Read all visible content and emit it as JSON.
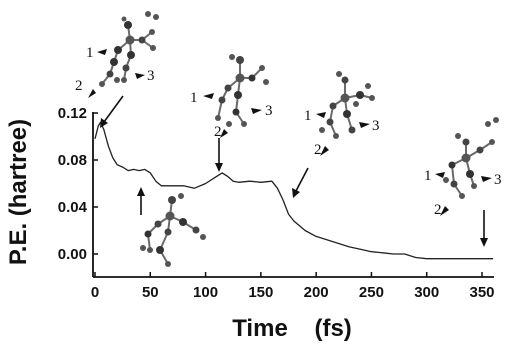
{
  "chart_data": {
    "type": "line",
    "title": "",
    "xlabel": "Time    (fs)",
    "ylabel": "P.E. (hartree)",
    "xlim": [
      0,
      360
    ],
    "ylim": [
      -0.01,
      0.12
    ],
    "xticks": [
      "0",
      "50",
      "100",
      "150",
      "200",
      "250",
      "300",
      "350"
    ],
    "xtick_values": [
      0,
      50,
      100,
      150,
      200,
      250,
      300,
      350
    ],
    "yticks": [
      "0.00",
      "0.04",
      "0.08",
      "0.12"
    ],
    "ytick_values": [
      0.0,
      0.04,
      0.08,
      0.12
    ],
    "grid": false,
    "series": [
      {
        "x": [
          0,
          3,
          5,
          8,
          12,
          16,
          20,
          25,
          30,
          35,
          40,
          45,
          50,
          55,
          60,
          70,
          80,
          90,
          100,
          110,
          115,
          120,
          125,
          130,
          140,
          150,
          160,
          165,
          170,
          175,
          180,
          190,
          200,
          210,
          220,
          230,
          240,
          250,
          260,
          270,
          280,
          290,
          300,
          320,
          340,
          360
        ],
        "y": [
          0.098,
          0.109,
          0.112,
          0.106,
          0.092,
          0.082,
          0.076,
          0.074,
          0.071,
          0.072,
          0.071,
          0.072,
          0.069,
          0.062,
          0.058,
          0.058,
          0.058,
          0.056,
          0.06,
          0.066,
          0.069,
          0.066,
          0.062,
          0.061,
          0.062,
          0.061,
          0.062,
          0.056,
          0.046,
          0.034,
          0.028,
          0.02,
          0.015,
          0.012,
          0.009,
          0.006,
          0.004,
          0.002,
          0.001,
          0.0,
          0.0,
          -0.003,
          -0.004,
          -0.004,
          -0.004,
          -0.004
        ]
      }
    ]
  },
  "annotations": {
    "structure_labels": [
      [
        "1",
        "2",
        "3"
      ],
      [
        "1",
        "2",
        "3"
      ],
      [
        "1",
        "2",
        "3"
      ],
      [
        "1",
        "2",
        "3"
      ]
    ],
    "arrow_times": [
      5,
      45,
      112,
      178,
      352
    ]
  }
}
